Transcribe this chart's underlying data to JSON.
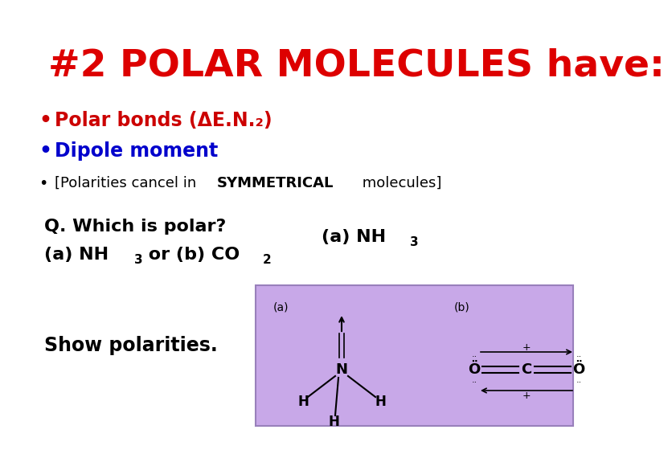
{
  "title": "#2 POLAR MOLECULES have:",
  "title_color": "#dd0000",
  "background_color": "#ffffff",
  "bullet1_color": "#cc0000",
  "bullet2_color": "#0000cc",
  "bullet3_color": "#000000",
  "box_color": "#c8a8e8",
  "box_edge_color": "#9980bb"
}
